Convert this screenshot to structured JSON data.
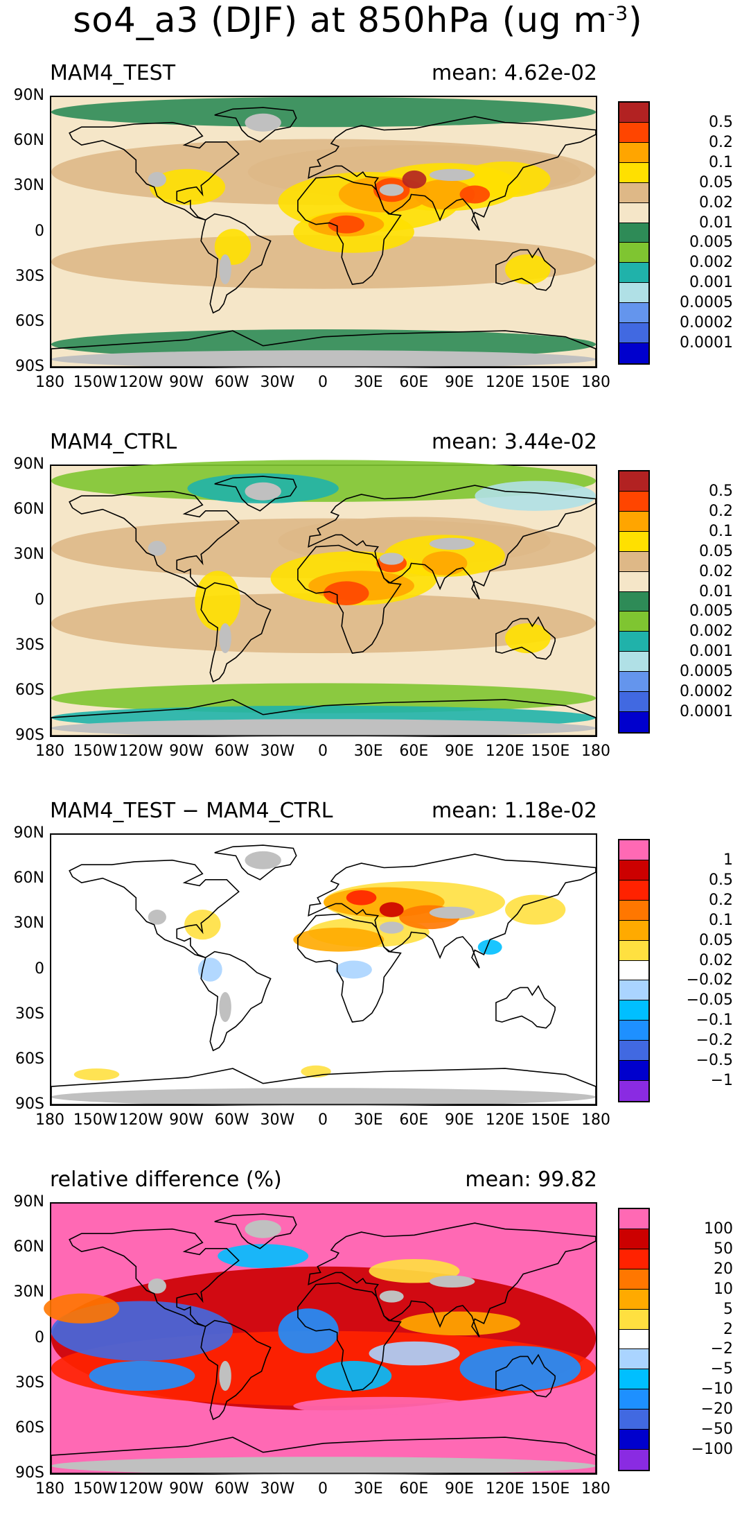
{
  "title": {
    "main": "so4_a3 (DJF) at 850hPa (ug m",
    "exp": "-3",
    "close": ")"
  },
  "x_ticks": [
    "180",
    "150W",
    "120W",
    "90W",
    "60W",
    "30W",
    "0",
    "30E",
    "60E",
    "90E",
    "120E",
    "150E",
    "180"
  ],
  "y_ticks": [
    "90N",
    "60N",
    "30N",
    "0",
    "30S",
    "60S",
    "90S"
  ],
  "panels": [
    {
      "title": "MAM4_TEST",
      "mean": "mean: 4.62e-02",
      "background": "#f5e6c8",
      "colorbar": {
        "colors": [
          "#b22222",
          "#ff4500",
          "#ffa500",
          "#ffe000",
          "#deb887",
          "#f5e6c8",
          "#2e8b57",
          "#7fc531",
          "#20b2aa",
          "#b0e0e6",
          "#6495ed",
          "#4169e1",
          "#0000cd"
        ],
        "labels": [
          "0.5",
          "0.2",
          "0.1",
          "0.05",
          "0.02",
          "0.01",
          "0.005",
          "0.002",
          "0.001",
          "0.0005",
          "0.0002",
          "0.0001"
        ]
      }
    },
    {
      "title": "MAM4_CTRL",
      "mean": "mean: 3.44e-02",
      "background": "#f5e6c8",
      "colorbar": {
        "colors": [
          "#b22222",
          "#ff4500",
          "#ffa500",
          "#ffe000",
          "#deb887",
          "#f5e6c8",
          "#2e8b57",
          "#7fc531",
          "#20b2aa",
          "#b0e0e6",
          "#6495ed",
          "#4169e1",
          "#0000cd"
        ],
        "labels": [
          "0.5",
          "0.2",
          "0.1",
          "0.05",
          "0.02",
          "0.01",
          "0.005",
          "0.002",
          "0.001",
          "0.0005",
          "0.0002",
          "0.0001"
        ]
      }
    },
    {
      "title": "MAM4_TEST − MAM4_CTRL",
      "mean": "mean: 1.18e-02",
      "background": "#ffffff",
      "colorbar": {
        "colors": [
          "#ff69b4",
          "#cc0000",
          "#ff2200",
          "#ff7700",
          "#ffaa00",
          "#ffe040",
          "#ffffff",
          "#aad4ff",
          "#00bfff",
          "#1e90ff",
          "#4169e1",
          "#0000cd",
          "#8a2be2"
        ],
        "labels": [
          "1",
          "0.5",
          "0.2",
          "0.1",
          "0.05",
          "0.02",
          "−0.02",
          "−0.05",
          "−0.1",
          "−0.2",
          "−0.5",
          "−1"
        ]
      }
    },
    {
      "title": "relative difference (%)",
      "mean": "mean: 99.82",
      "background": "#ff69b4",
      "colorbar": {
        "colors": [
          "#ff69b4",
          "#cc0000",
          "#ff2200",
          "#ff7700",
          "#ffaa00",
          "#ffe040",
          "#ffffff",
          "#aad4ff",
          "#00bfff",
          "#1e90ff",
          "#4169e1",
          "#0000cd",
          "#8a2be2"
        ],
        "labels": [
          "100",
          "50",
          "20",
          "10",
          "5",
          "2",
          "−2",
          "−5",
          "−10",
          "−20",
          "−50",
          "−100"
        ]
      }
    }
  ],
  "colors": {
    "land_missing": "#c0c0c0",
    "coast": "#000000"
  }
}
